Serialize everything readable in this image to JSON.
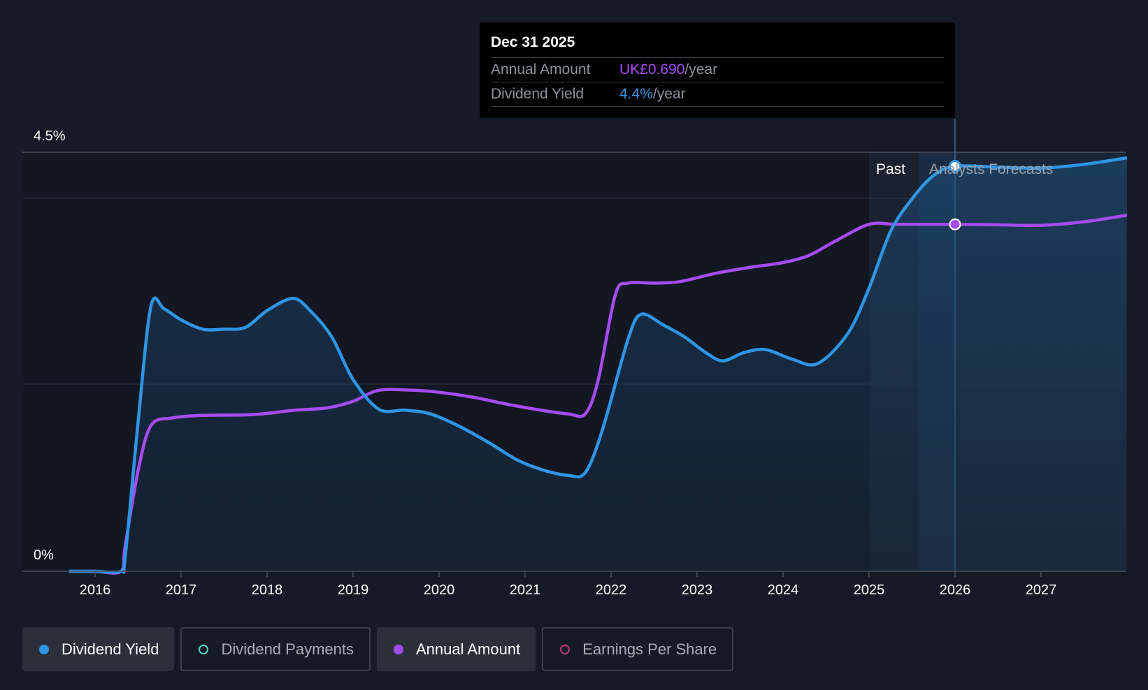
{
  "colors": {
    "background": "#151b26",
    "dividend_yield": "#2f95e5",
    "annual_amount": "#a64bf0",
    "dividend_payments": "#4fd1c5",
    "earnings_per_share": "#b93a6f",
    "grid": "#2e3440"
  },
  "tooltip": {
    "date": "Dec 31 2025",
    "rows": [
      {
        "label": "Annual Amount",
        "value": "UK£0.690",
        "unit": "/year",
        "color": "#a64bf0"
      },
      {
        "label": "Dividend Yield",
        "value": "4.4%",
        "unit": "/year",
        "color": "#2f95e5"
      }
    ]
  },
  "chart_data": {
    "type": "area",
    "title": "",
    "xlabel": "",
    "ylabel": "",
    "y_ticks": [
      "0%",
      "4.5%"
    ],
    "ylim": [
      0,
      4.5
    ],
    "x_ticks": [
      "2016",
      "2017",
      "2018",
      "2019",
      "2020",
      "2021",
      "2022",
      "2023",
      "2024",
      "2025",
      "2026",
      "2027"
    ],
    "xlim": [
      2015.5,
      2028.0
    ],
    "grid": true,
    "region_labels": {
      "past": "Past",
      "forecast": "Analysts Forecasts"
    },
    "forecast_start": 2025.58,
    "past_band_start": 2025.0,
    "highlight_x": 2026.0,
    "annual_amount_ylim": [
      0,
      0.8
    ],
    "series": [
      {
        "name": "Dividend Yield",
        "unit": "%",
        "x": [
          2015.7,
          2016.0,
          2016.3,
          2016.35,
          2016.5,
          2016.65,
          2016.8,
          2017.0,
          2017.25,
          2017.5,
          2017.75,
          2018.0,
          2018.3,
          2018.5,
          2018.75,
          2019.0,
          2019.3,
          2019.6,
          2019.9,
          2020.25,
          2020.6,
          2020.9,
          2021.2,
          2021.5,
          2021.7,
          2021.9,
          2022.2,
          2022.35,
          2022.6,
          2022.85,
          2023.1,
          2023.3,
          2023.55,
          2023.8,
          2024.1,
          2024.4,
          2024.75,
          2025.0,
          2025.25,
          2025.5,
          2025.75,
          2026.0,
          2026.5,
          2027.0,
          2027.5,
          2028.0
        ],
        "values": [
          0.0,
          0.0,
          0.0,
          0.15,
          1.6,
          2.85,
          2.82,
          2.7,
          2.6,
          2.6,
          2.62,
          2.8,
          2.93,
          2.8,
          2.52,
          2.06,
          1.74,
          1.73,
          1.69,
          1.55,
          1.37,
          1.2,
          1.09,
          1.03,
          1.06,
          1.52,
          2.5,
          2.76,
          2.65,
          2.52,
          2.35,
          2.26,
          2.35,
          2.38,
          2.28,
          2.23,
          2.55,
          3.04,
          3.65,
          4.0,
          4.25,
          4.35,
          4.34,
          4.33,
          4.37,
          4.44
        ]
      },
      {
        "name": "Annual Amount",
        "unit": "UK£",
        "x": [
          2015.7,
          2016.0,
          2016.3,
          2016.35,
          2016.5,
          2016.65,
          2016.9,
          2017.25,
          2017.75,
          2018.0,
          2018.3,
          2018.7,
          2019.0,
          2019.3,
          2019.7,
          2020.0,
          2020.4,
          2020.8,
          2021.2,
          2021.5,
          2021.7,
          2021.85,
          2022.05,
          2022.2,
          2022.5,
          2022.8,
          2023.2,
          2023.6,
          2024.0,
          2024.3,
          2024.6,
          2025.0,
          2025.3,
          2025.6,
          2026.0,
          2026.5,
          2027.0,
          2027.5,
          2028.0
        ],
        "values": [
          0.0,
          0.0,
          0.0,
          0.05,
          0.2,
          0.29,
          0.305,
          0.31,
          0.311,
          0.314,
          0.32,
          0.325,
          0.338,
          0.36,
          0.36,
          0.356,
          0.346,
          0.332,
          0.32,
          0.313,
          0.313,
          0.38,
          0.55,
          0.573,
          0.573,
          0.576,
          0.592,
          0.604,
          0.614,
          0.628,
          0.656,
          0.69,
          0.69,
          0.69,
          0.69,
          0.689,
          0.688,
          0.695,
          0.708
        ]
      }
    ]
  },
  "legend": [
    {
      "label": "Dividend Yield",
      "active": true,
      "color": "#2f95e5",
      "filled": true
    },
    {
      "label": "Dividend Payments",
      "active": false,
      "color": "#4fd1c5",
      "filled": false
    },
    {
      "label": "Annual Amount",
      "active": true,
      "color": "#a64bf0",
      "filled": true
    },
    {
      "label": "Earnings Per Share",
      "active": false,
      "color": "#b93a6f",
      "filled": false
    }
  ]
}
